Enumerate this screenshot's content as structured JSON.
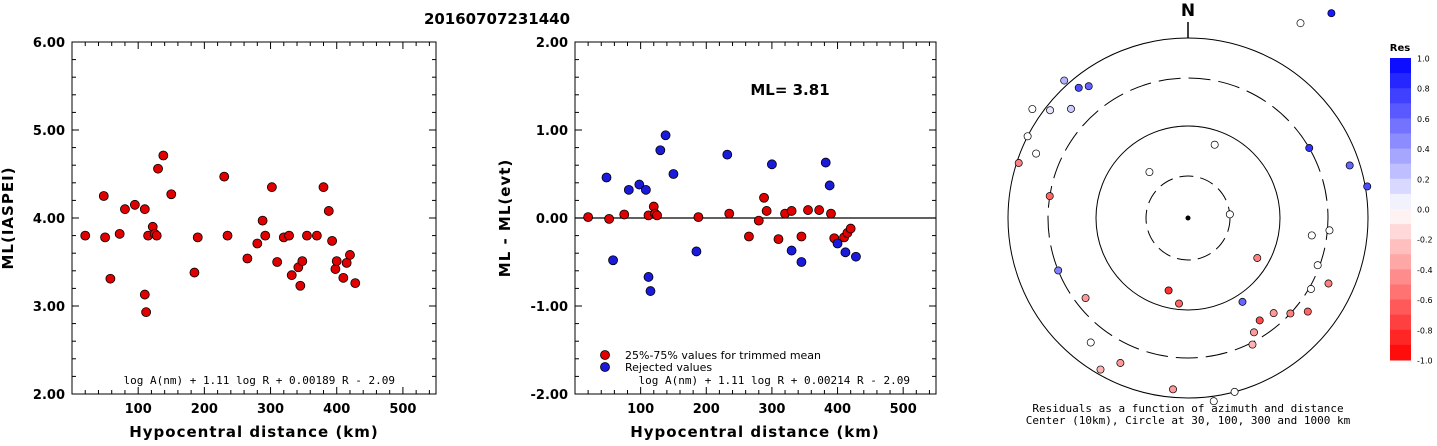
{
  "title": "20160707231440",
  "charts": [
    {
      "type": "scatter",
      "xlabel": "Hypocentral distance (km)",
      "ylabel": "ML(IASPEI)",
      "xlim": [
        0,
        550
      ],
      "ylim": [
        2.0,
        6.0
      ],
      "xticks": [
        "100",
        "200",
        "300",
        "400",
        "500"
      ],
      "yticks": [
        "2.00",
        "3.00",
        "4.00",
        "5.00",
        "6.00"
      ],
      "formula": "log A(nm) + 1.11 log R + 0.00189 R - 2.09",
      "marker_color": "#e00000",
      "points": [
        [
          20,
          3.8
        ],
        [
          48,
          4.25
        ],
        [
          50,
          3.78
        ],
        [
          58,
          3.31
        ],
        [
          72,
          3.82
        ],
        [
          80,
          4.1
        ],
        [
          95,
          4.15
        ],
        [
          110,
          3.13
        ],
        [
          110,
          4.1
        ],
        [
          112,
          2.93
        ],
        [
          115,
          3.8
        ],
        [
          122,
          3.9
        ],
        [
          125,
          3.82
        ],
        [
          128,
          3.8
        ],
        [
          130,
          4.56
        ],
        [
          138,
          4.71
        ],
        [
          150,
          4.27
        ],
        [
          185,
          3.38
        ],
        [
          190,
          3.78
        ],
        [
          230,
          4.47
        ],
        [
          235,
          3.8
        ],
        [
          265,
          3.54
        ],
        [
          280,
          3.71
        ],
        [
          288,
          3.97
        ],
        [
          292,
          3.8
        ],
        [
          302,
          4.35
        ],
        [
          310,
          3.5
        ],
        [
          320,
          3.78
        ],
        [
          328,
          3.8
        ],
        [
          332,
          3.35
        ],
        [
          342,
          3.44
        ],
        [
          345,
          3.23
        ],
        [
          348,
          3.51
        ],
        [
          355,
          3.8
        ],
        [
          370,
          3.8
        ],
        [
          380,
          4.35
        ],
        [
          388,
          4.08
        ],
        [
          393,
          3.74
        ],
        [
          398,
          3.42
        ],
        [
          400,
          3.51
        ],
        [
          410,
          3.32
        ],
        [
          415,
          3.49
        ],
        [
          420,
          3.58
        ],
        [
          428,
          3.26
        ]
      ]
    },
    {
      "type": "scatter",
      "xlabel": "Hypocentral distance (km)",
      "ylabel": "ML - ML(evt)",
      "xlim": [
        0,
        550
      ],
      "ylim": [
        -2.0,
        2.0
      ],
      "xticks": [
        "100",
        "200",
        "300",
        "400",
        "500"
      ],
      "yticks": [
        "-2.00",
        "-1.00",
        "0.00",
        "1.00",
        "2.00"
      ],
      "annotation": "ML= 3.81",
      "legend": [
        {
          "label": "25%-75% values for trimmed mean",
          "color": "#e00000"
        },
        {
          "label": "Rejected values",
          "color": "#1a1adc"
        }
      ],
      "formula": "log A(nm) + 1.11 log R + 0.00214 R - 2.09",
      "series": [
        {
          "name": "25%-75% values for trimmed mean",
          "color": "#e00000",
          "points": [
            [
              20,
              0.01
            ],
            [
              52,
              -0.01
            ],
            [
              75,
              0.04
            ],
            [
              112,
              0.03
            ],
            [
              120,
              0.13
            ],
            [
              122,
              0.05
            ],
            [
              125,
              0.03
            ],
            [
              188,
              0.01
            ],
            [
              235,
              0.05
            ],
            [
              265,
              -0.21
            ],
            [
              280,
              -0.03
            ],
            [
              288,
              0.23
            ],
            [
              292,
              0.08
            ],
            [
              310,
              -0.24
            ],
            [
              320,
              0.05
            ],
            [
              330,
              0.08
            ],
            [
              345,
              -0.21
            ],
            [
              355,
              0.09
            ],
            [
              372,
              0.09
            ],
            [
              390,
              0.05
            ],
            [
              395,
              -0.23
            ],
            [
              410,
              -0.22
            ],
            [
              415,
              -0.17
            ],
            [
              420,
              -0.12
            ]
          ]
        },
        {
          "name": "Rejected values",
          "color": "#1a1adc",
          "points": [
            [
              48,
              0.46
            ],
            [
              58,
              -0.48
            ],
            [
              82,
              0.32
            ],
            [
              98,
              0.38
            ],
            [
              108,
              0.32
            ],
            [
              112,
              -0.67
            ],
            [
              115,
              -0.83
            ],
            [
              130,
              0.77
            ],
            [
              138,
              0.94
            ],
            [
              150,
              0.5
            ],
            [
              185,
              -0.38
            ],
            [
              232,
              0.72
            ],
            [
              300,
              0.61
            ],
            [
              330,
              -0.37
            ],
            [
              345,
              -0.5
            ],
            [
              382,
              0.63
            ],
            [
              388,
              0.37
            ],
            [
              400,
              -0.29
            ],
            [
              412,
              -0.39
            ],
            [
              428,
              -0.44
            ]
          ]
        }
      ]
    },
    {
      "type": "scatter",
      "subtype": "polar",
      "north_label": "N",
      "caption_line1": "Residuals as a function of azimuth and distance",
      "caption_line2": "Center (10km), Circle at 30, 100, 300 and 1000 km",
      "colorbar": {
        "title": "Res",
        "ticks": [
          "1.0",
          "0.8",
          "0.6",
          "0.4",
          "0.2",
          "0.0",
          "-0.2",
          "-0.4",
          "-0.6",
          "-0.8",
          "-1.0"
        ],
        "max_color": "#0000ff",
        "min_color": "#ff0000"
      },
      "points": [
        [
          5,
          298,
          -0.2
        ],
        [
          348,
          262,
          0.0
        ],
        [
          340,
          240,
          0.8
        ],
        [
          30,
          225,
          0.0
        ],
        [
          35,
          250,
          0.9
        ],
        [
          320,
          170,
          0.7
        ],
        [
          323,
          165,
          0.6
        ],
        [
          318,
          185,
          0.3
        ],
        [
          313,
          160,
          0.2
        ],
        [
          308,
          175,
          0.1
        ],
        [
          305,
          190,
          0.0
        ],
        [
          297,
          180,
          0.0
        ],
        [
          293,
          165,
          0.0
        ],
        [
          288,
          178,
          -0.5
        ],
        [
          279,
          140,
          -0.6
        ],
        [
          320,
          60,
          0.0
        ],
        [
          85,
          42,
          0.0
        ],
        [
          20,
          78,
          0.0
        ],
        [
          60,
          140,
          0.8
        ],
        [
          72,
          170,
          0.6
        ],
        [
          120,
          80,
          -0.5
        ],
        [
          147,
          100,
          0.6
        ],
        [
          80,
          182,
          0.7
        ],
        [
          95,
          142,
          0.0
        ],
        [
          98,
          125,
          0.0
        ],
        [
          110,
          138,
          0.0
        ],
        [
          120,
          142,
          0.0
        ],
        [
          115,
          155,
          -0.5
        ],
        [
          128,
          152,
          -0.6
        ],
        [
          133,
          140,
          -0.5
        ],
        [
          138,
          128,
          -0.4
        ],
        [
          145,
          125,
          -0.7
        ],
        [
          150,
          132,
          -0.4
        ],
        [
          153,
          142,
          -0.3
        ],
        [
          165,
          180,
          0.0
        ],
        [
          172,
          185,
          0.0
        ],
        [
          185,
          172,
          -0.4
        ],
        [
          205,
          160,
          -0.4
        ],
        [
          210,
          175,
          -0.3
        ],
        [
          218,
          158,
          0.0
        ],
        [
          232,
          130,
          -0.4
        ],
        [
          248,
          140,
          0.5
        ],
        [
          195,
          75,
          -0.8
        ],
        [
          186,
          86,
          -0.6
        ]
      ]
    }
  ]
}
